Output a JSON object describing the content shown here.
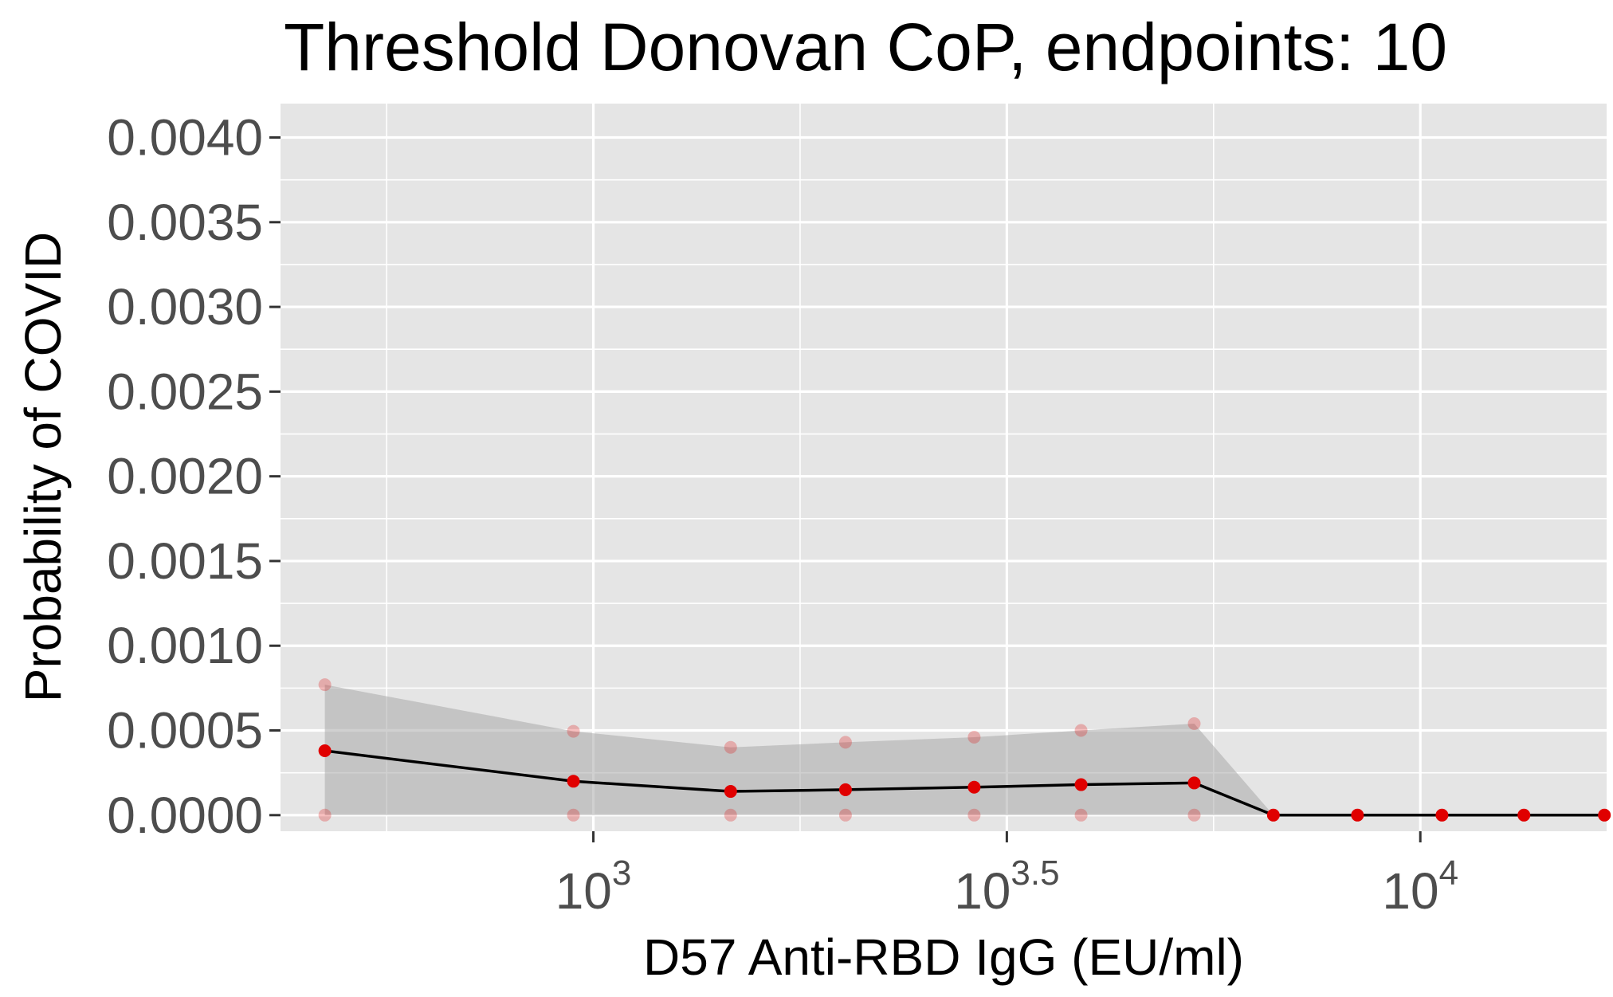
{
  "chart_data": {
    "type": "line",
    "title": "Threshold Donovan CoP, endpoints: 10",
    "xlabel": "D57 Anti-RBD IgG (EU/ml)",
    "ylabel": "Probability of COVID",
    "x_scale": "log10",
    "xlim_log10": [
      2.6217,
      4.2253
    ],
    "ylim": [
      -9.5e-05,
      0.0042
    ],
    "yticks": [
      0.0,
      0.0005,
      0.001,
      0.0015,
      0.002,
      0.0025,
      0.003,
      0.0035,
      0.004
    ],
    "ytick_labels": [
      "0.0000",
      "0.0005",
      "0.0010",
      "0.0015",
      "0.0020",
      "0.0025",
      "0.0030",
      "0.0035",
      "0.0040"
    ],
    "xticks": [
      {
        "base": "10",
        "exp": "3",
        "log10": 3.0
      },
      {
        "base": "10",
        "exp": "3.5",
        "log10": 3.5
      },
      {
        "base": "10",
        "exp": "4",
        "log10": 4.0
      }
    ],
    "x_minor_log10": [
      2.75,
      3.25,
      3.75,
      4.25
    ],
    "y_minor": [
      0.00025,
      0.00075,
      0.00125,
      0.00175,
      0.00225,
      0.00275,
      0.00325,
      0.00375
    ],
    "series": [
      {
        "x_log10": [
          2.6753,
          2.9759,
          3.166,
          3.3049,
          3.4605,
          3.5898,
          3.7266,
          3.8223,
          3.924,
          4.0262,
          4.1253,
          4.2226
        ],
        "y": [
          0.00038,
          0.0002,
          0.00014,
          0.00015,
          0.000165,
          0.00018,
          0.00019,
          0.0,
          0.0,
          0.0,
          0.0,
          0.0
        ],
        "lower": [
          0.0,
          0.0,
          0.0,
          0.0,
          0.0,
          0.0,
          0.0,
          0.0,
          0.0,
          0.0,
          0.0,
          0.0
        ],
        "upper": [
          0.00077,
          0.000495,
          0.0004,
          0.00043,
          0.00046,
          0.0005,
          0.00054,
          0.0,
          0.0,
          0.0,
          0.0,
          0.0
        ],
        "ci_point_count": 7
      }
    ],
    "grid": true,
    "colors": {
      "panel": "#e5e5e5",
      "grid": "#ffffff",
      "line": "#000000",
      "points": "#e00000",
      "ribbon": "#a9a9a9"
    }
  }
}
